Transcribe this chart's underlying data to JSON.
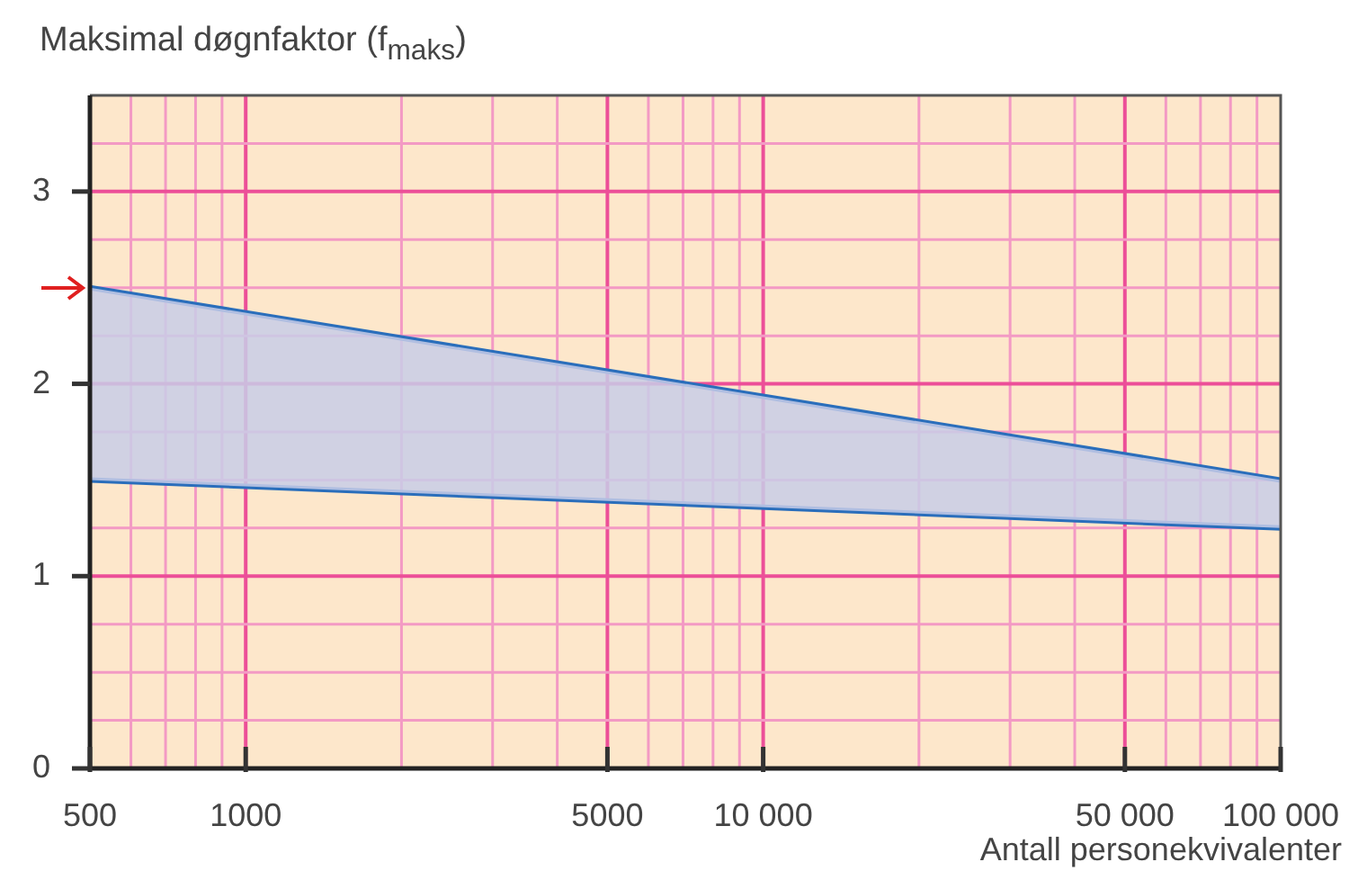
{
  "chart_data": {
    "type": "line",
    "ylabel": "Maksimal døgnfaktor (f$_{maks}$)",
    "xlabel": "Antall personekvivalenter",
    "x": [
      500,
      100000
    ],
    "series": [
      {
        "color": "#2a6ebb",
        "values": [
          2.5,
          1.5
        ],
        "lower": [
          1.5,
          1.25
        ],
        "upper": [
          2.5,
          1.5
        ]
      },
      {
        "color": "#2a6ebb",
        "values": [
          1.5,
          1.25
        ]
      }
    ],
    "log": "x",
    "xlim": [
      500,
      100000
    ],
    "xticks": [
      500,
      {
        "value": 600,
        "label": null
      },
      {
        "value": 700,
        "label": null
      },
      {
        "value": 800,
        "label": null
      },
      {
        "value": 900,
        "label": null
      },
      1000,
      {
        "value": 2000,
        "label": null
      },
      {
        "value": 3000,
        "label": null
      },
      {
        "value": 4000,
        "label": null
      },
      5000,
      {
        "value": 6000,
        "label": null
      },
      {
        "value": 7000,
        "label": null
      },
      {
        "value": 8000,
        "label": null
      },
      {
        "value": 9000,
        "label": null
      },
      {
        "value": 10000,
        "label": "10 000"
      },
      {
        "value": 20000,
        "label": null
      },
      {
        "value": 30000,
        "label": null
      },
      {
        "value": 40000,
        "label": null
      },
      {
        "value": 50000,
        "label": "50 000"
      },
      {
        "value": 60000,
        "label": null
      },
      {
        "value": 70000,
        "label": null
      },
      {
        "value": 80000,
        "label": null
      },
      {
        "value": 90000,
        "label": null
      },
      {
        "value": 100000,
        "label": "100 000"
      }
    ],
    "ylim": [
      0,
      3.5
    ],
    "yticks": [
      0,
      {
        "value": 0.25,
        "label": null
      },
      {
        "value": 0.5,
        "label": null
      },
      {
        "value": 0.75,
        "label": null
      },
      1,
      {
        "value": 1.25,
        "label": null
      },
      {
        "value": 1.5,
        "label": null
      },
      {
        "value": 1.75,
        "label": null
      },
      2,
      {
        "value": 2.25,
        "label": null
      },
      {
        "value": 2.5,
        "label": null
      },
      {
        "value": 2.75,
        "label": null
      },
      3,
      {
        "value": 3.25,
        "label": null
      }
    ],
    "grid": true,
    "legend": false
  }
}
